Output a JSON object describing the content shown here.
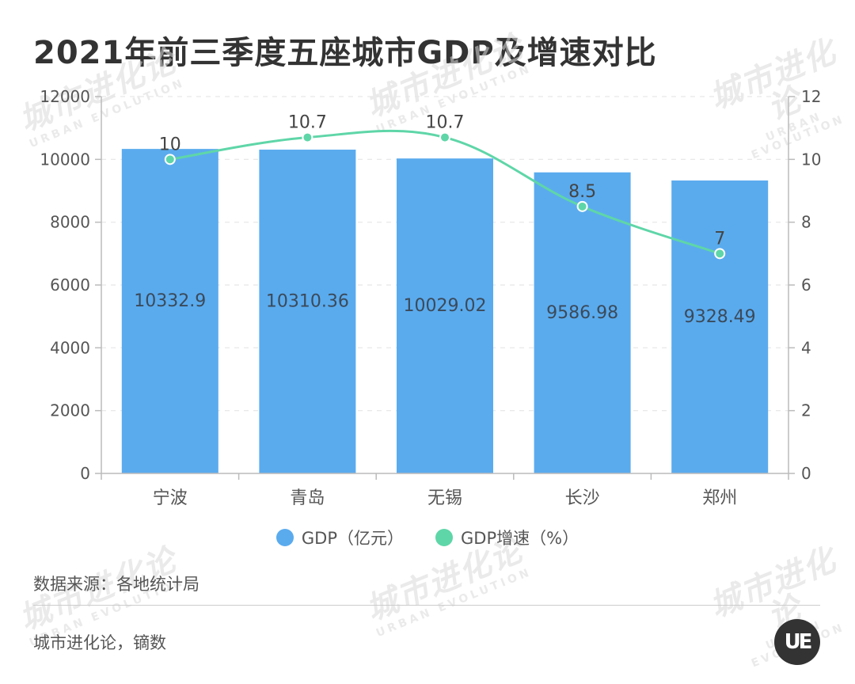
{
  "title": "2021年前三季度五座城市GDP及增速对比",
  "watermark": {
    "cn": "城市进化论",
    "en": "URBAN EVOLUTION"
  },
  "legend": [
    {
      "label": "GDP（亿元）",
      "color": "#5aabee"
    },
    {
      "label": "GDP增速（%）",
      "color": "#5fd6a8"
    }
  ],
  "source": "数据来源：各地统计局",
  "credit": "城市进化论，镝数",
  "logo_text": "UE",
  "chart_data": {
    "type": "bar",
    "categories": [
      "宁波",
      "青岛",
      "无锡",
      "长沙",
      "郑州"
    ],
    "series": [
      {
        "name": "GDP（亿元）",
        "type": "bar",
        "axis": "left",
        "values": [
          10332.9,
          10310.36,
          10029.02,
          9586.98,
          9328.49
        ],
        "labels": [
          "10332.9",
          "10310.36",
          "10029.02",
          "9586.98",
          "9328.49"
        ]
      },
      {
        "name": "GDP增速（%）",
        "type": "line",
        "axis": "right",
        "values": [
          10,
          10.7,
          10.7,
          8.5,
          7
        ],
        "labels": [
          "10",
          "10.7",
          "10.7",
          "8.5",
          "7"
        ]
      }
    ],
    "y_left": {
      "ylim": [
        0,
        12000
      ],
      "ticks": [
        "0",
        "2000",
        "4000",
        "6000",
        "8000",
        "10000",
        "12000"
      ]
    },
    "y_right": {
      "ylim": [
        0,
        12
      ],
      "ticks": [
        "0",
        "2",
        "4",
        "6",
        "8",
        "10",
        "12"
      ]
    },
    "grid": true,
    "legend_position": "bottom"
  }
}
